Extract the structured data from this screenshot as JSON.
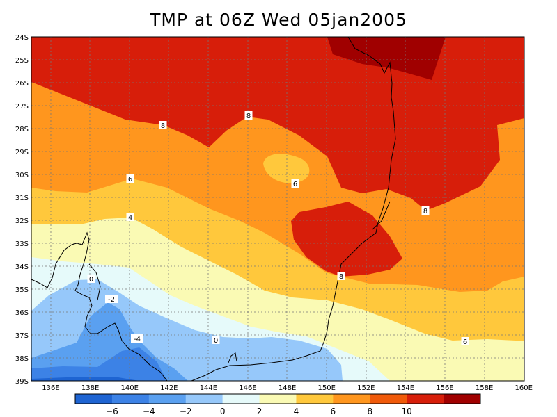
{
  "title": "TMP at 06Z Wed 05jan2005",
  "lat_ticks": [
    "24S",
    "25S",
    "26S",
    "27S",
    "28S",
    "29S",
    "30S",
    "31S",
    "32S",
    "33S",
    "34S",
    "35S",
    "36S",
    "37S",
    "38S",
    "39S"
  ],
  "lon_ticks": [
    "136E",
    "138E",
    "140E",
    "142E",
    "144E",
    "146E",
    "148E",
    "150E",
    "152E",
    "154E",
    "156E",
    "158E",
    "160E"
  ],
  "contour_labels": [
    "8",
    "8",
    "6",
    "6",
    "8",
    "4",
    "8",
    "0",
    "-2",
    "-4",
    "0",
    "6"
  ],
  "colorbar": {
    "labels": [
      "-6",
      "-4",
      "-2",
      "0",
      "2",
      "4",
      "6",
      "8",
      "10"
    ],
    "colors": [
      "#1e64d2",
      "#3c82e6",
      "#5aa0f0",
      "#96c8fa",
      "#e6fafa",
      "#fafab4",
      "#ffc83c",
      "#ff961e",
      "#f05a0a",
      "#d71e0a",
      "#a00000"
    ]
  }
}
